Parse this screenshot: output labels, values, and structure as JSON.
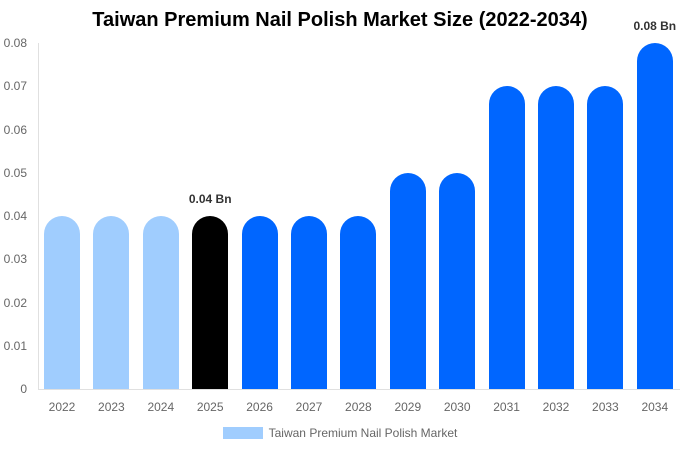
{
  "chart_data": {
    "type": "bar",
    "title": "Taiwan Premium Nail Polish Market Size (2022-2034)",
    "categories": [
      "2022",
      "2023",
      "2024",
      "2025",
      "2026",
      "2027",
      "2028",
      "2029",
      "2030",
      "2031",
      "2032",
      "2033",
      "2034"
    ],
    "series": [
      {
        "name": "Taiwan Premium Nail Polish Market",
        "values": [
          0.04,
          0.04,
          0.04,
          0.04,
          0.04,
          0.04,
          0.04,
          0.05,
          0.05,
          0.07,
          0.07,
          0.07,
          0.08
        ]
      }
    ],
    "bar_colors": [
      "#a0cdfe",
      "#a0cdfe",
      "#a0cdfe",
      "#000000",
      "#0066ff",
      "#0066ff",
      "#0066ff",
      "#0066ff",
      "#0066ff",
      "#0066ff",
      "#0066ff",
      "#0066ff",
      "#0066ff"
    ],
    "annotations": [
      {
        "category": "2025",
        "text": "0.04 Bn"
      },
      {
        "category": "2034",
        "text": "0.08 Bn"
      }
    ],
    "yticks": [
      "0",
      "0.01",
      "0.02",
      "0.03",
      "0.04",
      "0.05",
      "0.06",
      "0.07",
      "0.08"
    ],
    "ylim": [
      0,
      0.08
    ],
    "xlabel": "",
    "ylabel": "",
    "grid": false,
    "legend_position": "bottom",
    "legend_color": "#a0cdfe"
  }
}
